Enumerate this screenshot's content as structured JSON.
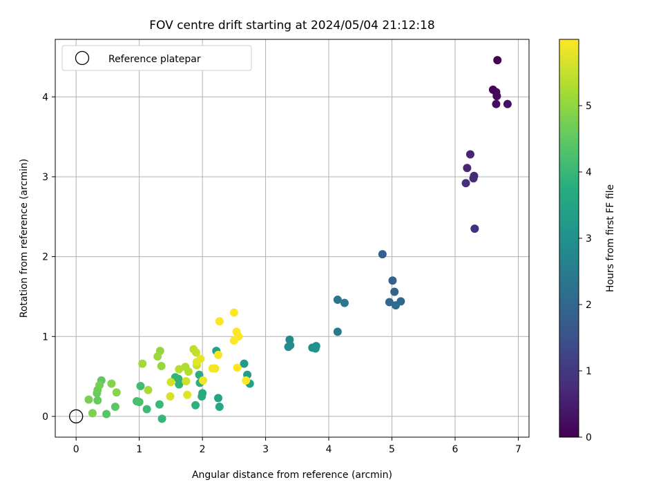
{
  "chart_data": {
    "type": "scatter",
    "title": "FOV centre drift starting at 2024/05/04 21:12:18",
    "xlabel": "Angular distance from reference (arcmin)",
    "ylabel": "Rotation from reference (arcmin)",
    "xlim": [
      -0.33,
      7.17
    ],
    "ylim": [
      -0.26,
      4.72
    ],
    "xticks": [
      "0",
      "1",
      "2",
      "3",
      "4",
      "5",
      "6",
      "7"
    ],
    "yticks": [
      "0",
      "1",
      "2",
      "3",
      "4"
    ],
    "grid": true,
    "legend": {
      "placement": "upper-left",
      "entries": [
        "Reference platepar"
      ]
    },
    "reference_point": {
      "x": 0,
      "y": 0
    },
    "colorbar": {
      "label": "Hours from first FF file",
      "min": 0,
      "max": 6.0,
      "ticks": [
        "0",
        "1",
        "2",
        "3",
        "4",
        "5"
      ],
      "colormap": "viridis"
    },
    "series": [
      {
        "points": [
          [
            6.67,
            4.46,
            0.0
          ],
          [
            6.6,
            4.09,
            0.05
          ],
          [
            6.65,
            4.06,
            0.1
          ],
          [
            6.66,
            4.01,
            0.15
          ],
          [
            6.65,
            3.91,
            0.2
          ],
          [
            6.83,
            3.91,
            0.25
          ],
          [
            6.24,
            3.28,
            0.6
          ],
          [
            6.19,
            3.11,
            0.65
          ],
          [
            6.3,
            3.01,
            0.7
          ],
          [
            6.29,
            2.98,
            0.75
          ],
          [
            6.17,
            2.92,
            0.8
          ],
          [
            6.31,
            2.35,
            0.85
          ],
          [
            4.85,
            2.03,
            1.8
          ],
          [
            5.01,
            1.7,
            1.85
          ],
          [
            5.04,
            1.56,
            1.9
          ],
          [
            4.96,
            1.43,
            1.95
          ],
          [
            5.14,
            1.44,
            2.0
          ],
          [
            5.06,
            1.39,
            2.05
          ],
          [
            4.14,
            1.46,
            2.35
          ],
          [
            4.25,
            1.42,
            2.4
          ],
          [
            4.14,
            1.06,
            2.45
          ],
          [
            3.38,
            0.96,
            2.8
          ],
          [
            3.39,
            0.89,
            2.85
          ],
          [
            3.36,
            0.87,
            2.9
          ],
          [
            3.74,
            0.86,
            2.95
          ],
          [
            3.8,
            0.88,
            3.0
          ],
          [
            3.79,
            0.85,
            3.05
          ],
          [
            2.66,
            0.66,
            3.3
          ],
          [
            2.71,
            0.52,
            3.35
          ],
          [
            2.75,
            0.41,
            3.4
          ],
          [
            2.22,
            0.82,
            3.45
          ],
          [
            2.25,
            0.23,
            3.5
          ],
          [
            2.27,
            0.12,
            3.55
          ],
          [
            2.0,
            0.29,
            3.6
          ],
          [
            1.99,
            0.25,
            3.65
          ],
          [
            1.95,
            0.52,
            3.7
          ],
          [
            1.96,
            0.42,
            3.75
          ],
          [
            1.89,
            0.14,
            3.8
          ],
          [
            1.62,
            0.47,
            3.85
          ],
          [
            1.63,
            0.4,
            3.9
          ],
          [
            1.57,
            0.49,
            3.95
          ],
          [
            1.36,
            -0.03,
            4.0
          ],
          [
            1.32,
            0.15,
            4.05
          ],
          [
            1.12,
            0.09,
            4.1
          ],
          [
            1.02,
            0.38,
            4.15
          ],
          [
            0.96,
            0.19,
            4.2
          ],
          [
            1.0,
            0.18,
            4.25
          ],
          [
            0.48,
            0.03,
            4.4
          ],
          [
            0.62,
            0.12,
            4.45
          ],
          [
            0.4,
            0.45,
            4.5
          ],
          [
            0.34,
            0.2,
            4.55
          ],
          [
            0.33,
            0.29,
            4.6
          ],
          [
            0.34,
            0.33,
            4.65
          ],
          [
            0.37,
            0.39,
            4.7
          ],
          [
            0.2,
            0.21,
            4.75
          ],
          [
            0.26,
            0.04,
            4.8
          ],
          [
            0.56,
            0.41,
            4.85
          ],
          [
            0.64,
            0.3,
            4.9
          ],
          [
            1.33,
            0.82,
            5.0
          ],
          [
            1.35,
            0.63,
            5.05
          ],
          [
            1.29,
            0.75,
            5.1
          ],
          [
            1.05,
            0.66,
            5.15
          ],
          [
            1.14,
            0.33,
            5.2
          ],
          [
            1.73,
            0.62,
            5.25
          ],
          [
            1.78,
            0.56,
            5.3
          ],
          [
            1.63,
            0.59,
            5.35
          ],
          [
            1.86,
            0.84,
            5.4
          ],
          [
            1.9,
            0.8,
            5.45
          ],
          [
            1.91,
            0.64,
            5.5
          ],
          [
            1.74,
            0.44,
            5.55
          ],
          [
            1.5,
            0.43,
            5.6
          ],
          [
            1.49,
            0.25,
            5.65
          ],
          [
            1.76,
            0.27,
            5.7
          ],
          [
            1.91,
            0.68,
            5.75
          ],
          [
            1.97,
            0.72,
            5.8
          ],
          [
            2.01,
            0.45,
            5.85
          ],
          [
            2.16,
            0.6,
            5.9
          ],
          [
            2.2,
            0.6,
            5.92
          ],
          [
            2.25,
            0.77,
            5.94
          ],
          [
            2.27,
            1.19,
            5.96
          ],
          [
            2.5,
            1.3,
            5.98
          ],
          [
            2.54,
            1.06,
            6.0
          ],
          [
            2.57,
            1.0,
            6.0
          ],
          [
            2.5,
            0.95,
            6.0
          ],
          [
            2.55,
            0.61,
            6.0
          ],
          [
            2.69,
            0.45,
            6.0
          ]
        ]
      }
    ]
  }
}
